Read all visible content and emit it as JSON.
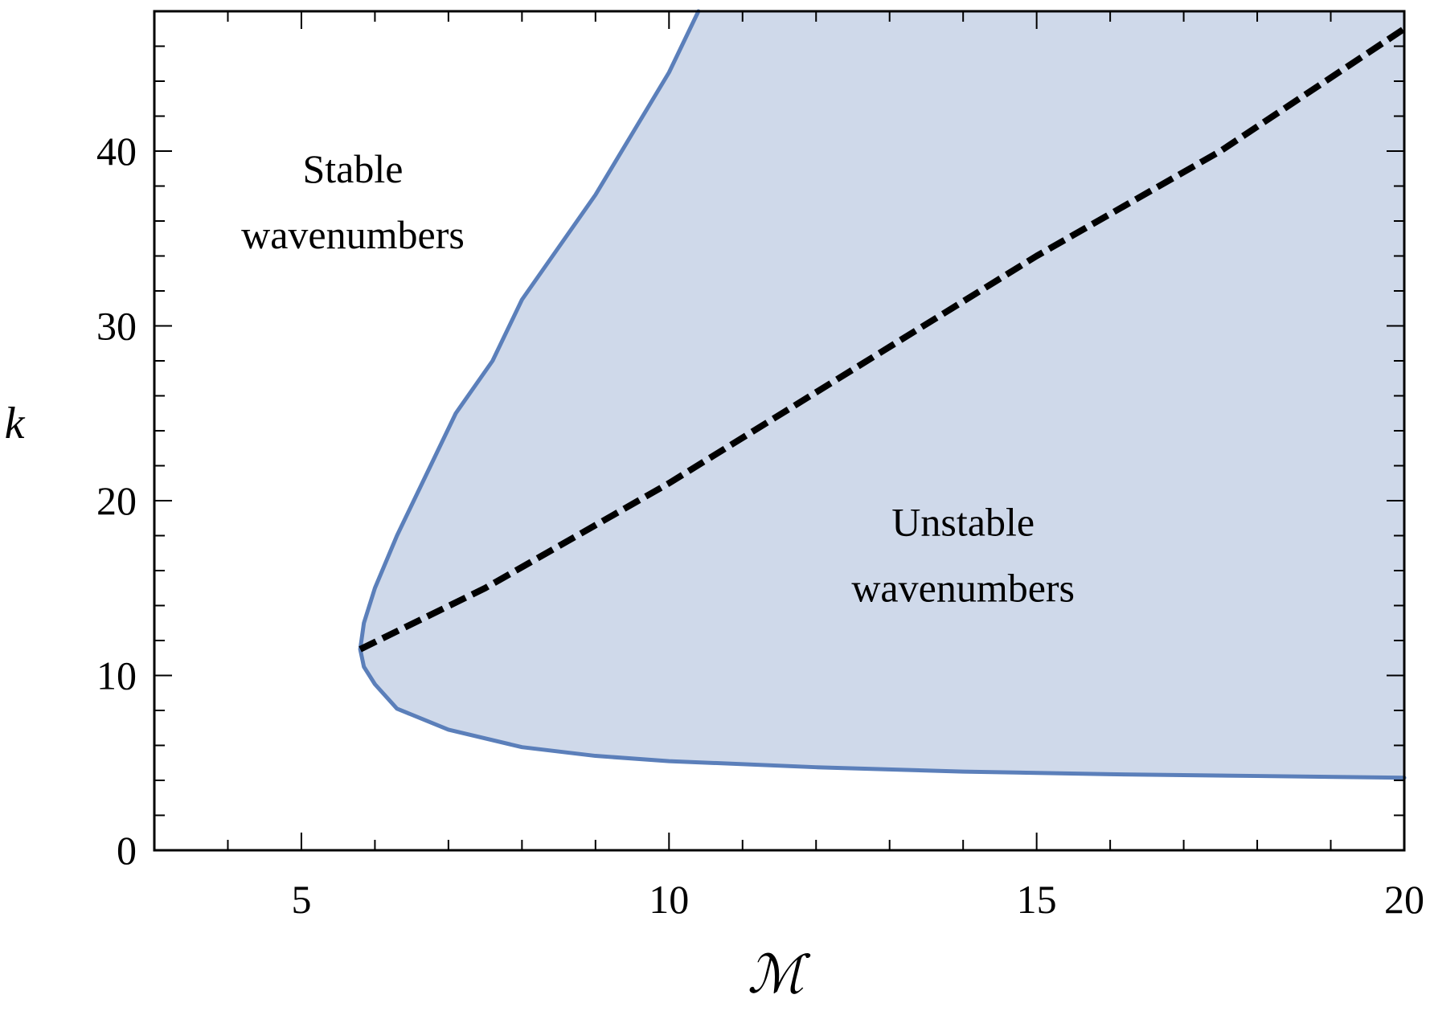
{
  "chart_data": {
    "type": "area",
    "xlabel": "ℳ",
    "ylabel": "k",
    "xlim": [
      3,
      20
    ],
    "ylim": [
      0,
      48
    ],
    "x_ticks": [
      5,
      10,
      15,
      20
    ],
    "y_ticks": [
      0,
      10,
      20,
      30,
      40
    ],
    "grid": false,
    "colors": {
      "fill": "#cfd9ea",
      "boundary": "#5b7fba",
      "dashed": "#000000"
    },
    "series": [
      {
        "role": "instability-boundary",
        "style": "solid",
        "points": [
          [
            10.4,
            48
          ],
          [
            10.0,
            44.5
          ],
          [
            9.5,
            41.0
          ],
          [
            9.0,
            37.5
          ],
          [
            8.5,
            34.5
          ],
          [
            8.0,
            31.5
          ],
          [
            7.6,
            28.0
          ],
          [
            7.1,
            25.0
          ],
          [
            6.7,
            21.5
          ],
          [
            6.3,
            18.0
          ],
          [
            6.0,
            15.0
          ],
          [
            5.85,
            13.0
          ],
          [
            5.8,
            11.5
          ],
          [
            5.85,
            10.5
          ],
          [
            6.0,
            9.5
          ],
          [
            6.3,
            8.1
          ],
          [
            7.0,
            6.9
          ],
          [
            8.0,
            5.9
          ],
          [
            9.0,
            5.4
          ],
          [
            10.0,
            5.1
          ],
          [
            12.0,
            4.75
          ],
          [
            14.0,
            4.5
          ],
          [
            16.0,
            4.35
          ],
          [
            18.0,
            4.25
          ],
          [
            20.0,
            4.15
          ]
        ]
      },
      {
        "role": "dashed-curve",
        "style": "dashed",
        "points": [
          [
            5.8,
            11.5
          ],
          [
            7.5,
            15.0
          ],
          [
            10.0,
            21.0
          ],
          [
            12.5,
            27.5
          ],
          [
            15.0,
            34.0
          ],
          [
            17.5,
            40.0
          ],
          [
            20.0,
            47.0
          ]
        ]
      }
    ],
    "annotations": [
      {
        "lines": [
          "Stable",
          "wavenumbers"
        ],
        "x": 5.7,
        "y": 38.2
      },
      {
        "lines": [
          "Unstable",
          "wavenumbers"
        ],
        "x": 14.0,
        "y": 18.0
      }
    ]
  }
}
